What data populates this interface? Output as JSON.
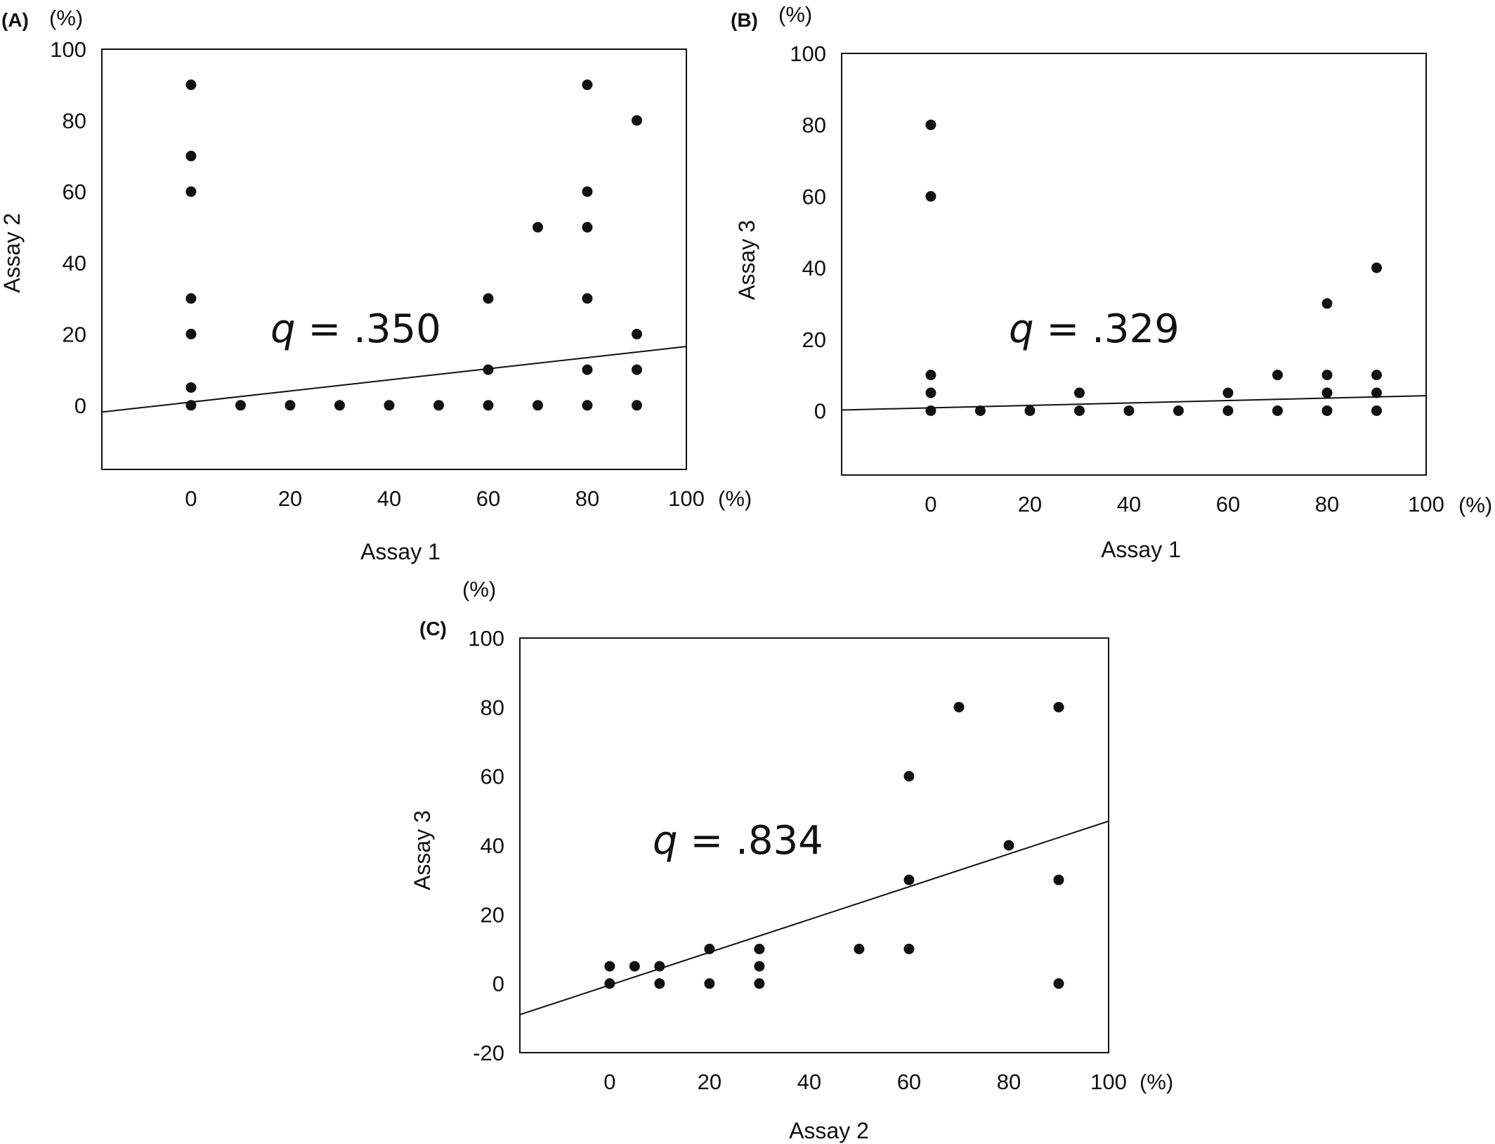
{
  "chart_data": [
    {
      "type": "scatter",
      "panel_label": "(A)",
      "xlabel": "Assay 1",
      "ylabel": "Assay 2",
      "x_unit": "(%)",
      "y_unit": "(%)",
      "xlim": [
        -18,
        100
      ],
      "ylim": [
        -18,
        100
      ],
      "xticks": [
        0,
        20,
        40,
        60,
        80,
        100
      ],
      "yticks": [
        0,
        20,
        40,
        60,
        80,
        100
      ],
      "annotation": {
        "symbol": "q",
        "text": " = .350"
      },
      "trendline": [
        [
          -18,
          -1.9
        ],
        [
          100,
          16.5
        ]
      ],
      "points": [
        [
          0,
          90
        ],
        [
          0,
          70
        ],
        [
          0,
          60
        ],
        [
          0,
          30
        ],
        [
          0,
          20
        ],
        [
          0,
          5
        ],
        [
          0,
          0
        ],
        [
          10,
          0
        ],
        [
          20,
          0
        ],
        [
          30,
          0
        ],
        [
          40,
          0
        ],
        [
          50,
          0
        ],
        [
          60,
          30
        ],
        [
          60,
          10
        ],
        [
          60,
          0
        ],
        [
          70,
          50
        ],
        [
          70,
          0
        ],
        [
          80,
          90
        ],
        [
          80,
          60
        ],
        [
          80,
          50
        ],
        [
          80,
          30
        ],
        [
          80,
          10
        ],
        [
          80,
          0
        ],
        [
          90,
          80
        ],
        [
          90,
          20
        ],
        [
          90,
          10
        ],
        [
          90,
          0
        ]
      ]
    },
    {
      "type": "scatter",
      "panel_label": "(B)",
      "xlabel": "Assay 1",
      "ylabel": "Assay 3",
      "x_unit": "(%)",
      "y_unit": "(%)",
      "xlim": [
        -18,
        100
      ],
      "ylim": [
        -18,
        100
      ],
      "xticks": [
        0,
        20,
        40,
        60,
        80,
        100
      ],
      "yticks": [
        0,
        20,
        40,
        60,
        80,
        100
      ],
      "annotation": {
        "symbol": "q",
        "text": " = .329"
      },
      "trendline": [
        [
          -18,
          0.2
        ],
        [
          100,
          4.2
        ]
      ],
      "points": [
        [
          0,
          80
        ],
        [
          0,
          60
        ],
        [
          0,
          10
        ],
        [
          0,
          5
        ],
        [
          0,
          0
        ],
        [
          10,
          0
        ],
        [
          20,
          0
        ],
        [
          30,
          5
        ],
        [
          30,
          0
        ],
        [
          40,
          0
        ],
        [
          50,
          0
        ],
        [
          60,
          5
        ],
        [
          60,
          0
        ],
        [
          70,
          10
        ],
        [
          70,
          0
        ],
        [
          80,
          30
        ],
        [
          80,
          10
        ],
        [
          80,
          5
        ],
        [
          80,
          0
        ],
        [
          90,
          40
        ],
        [
          90,
          10
        ],
        [
          90,
          5
        ],
        [
          90,
          0
        ]
      ]
    },
    {
      "type": "scatter",
      "panel_label": "(C)",
      "xlabel": "Assay 2",
      "ylabel": "Assay 3",
      "x_unit": "(%)",
      "y_unit": "(%)",
      "xlim": [
        -18,
        100
      ],
      "ylim": [
        -20,
        100
      ],
      "xticks": [
        0,
        20,
        40,
        60,
        80,
        100
      ],
      "yticks": [
        -20,
        0,
        20,
        40,
        60,
        80,
        100
      ],
      "annotation": {
        "symbol": "q",
        "text": " = .834"
      },
      "trendline": [
        [
          -18,
          -9
        ],
        [
          100,
          47
        ]
      ],
      "points": [
        [
          0,
          5
        ],
        [
          0,
          0
        ],
        [
          5,
          5
        ],
        [
          10,
          5
        ],
        [
          10,
          0
        ],
        [
          20,
          10
        ],
        [
          20,
          0
        ],
        [
          30,
          10
        ],
        [
          30,
          5
        ],
        [
          30,
          0
        ],
        [
          50,
          10
        ],
        [
          60,
          60
        ],
        [
          60,
          30
        ],
        [
          60,
          10
        ],
        [
          70,
          80
        ],
        [
          80,
          40
        ],
        [
          90,
          80
        ],
        [
          90,
          30
        ],
        [
          90,
          0
        ]
      ]
    }
  ]
}
